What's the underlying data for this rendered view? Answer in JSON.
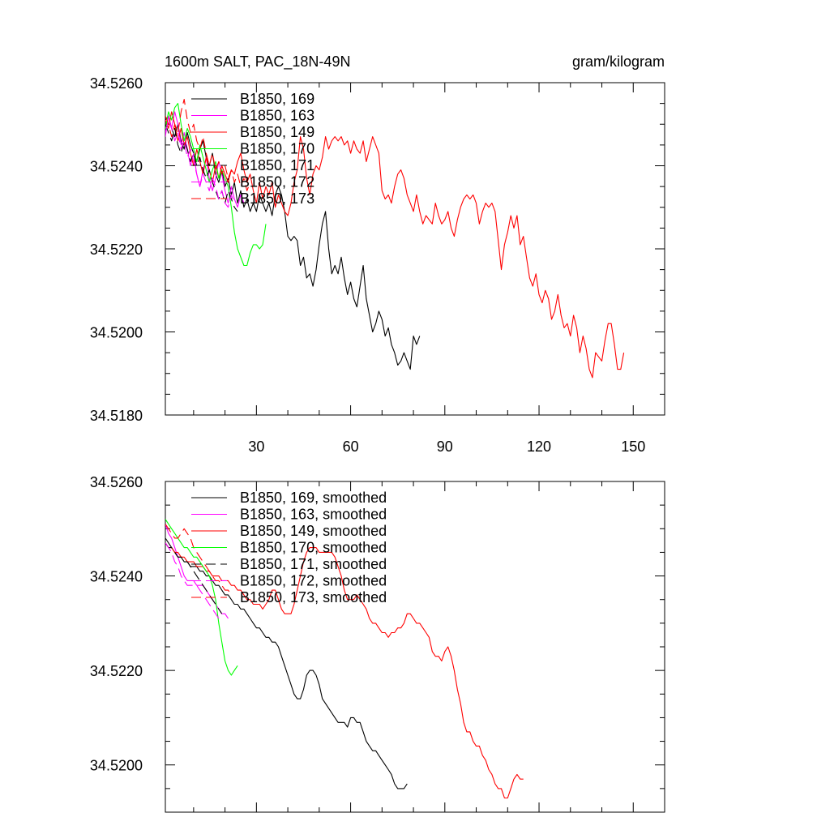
{
  "chart_data": [
    {
      "type": "line",
      "title_left": "1600m SALT, PAC_18N-49N",
      "title_right": "gram/kilogram",
      "xlabel": "",
      "ylabel": "",
      "xlim": [
        1,
        160
      ],
      "ylim": [
        34.518,
        34.526
      ],
      "x_ticks": [
        30,
        60,
        90,
        120,
        150
      ],
      "x_tick_labels": [
        "30",
        "60",
        "90",
        "120",
        "150"
      ],
      "y_ticks": [
        34.518,
        34.52,
        34.522,
        34.524,
        34.526
      ],
      "y_tick_labels": [
        "34.5180",
        "34.5200",
        "34.5220",
        "34.5240",
        "34.5260"
      ],
      "legend_position": "top-left",
      "series": [
        {
          "name": "B1850, 169",
          "color": "#000000",
          "dash": "solid",
          "x_start": 1,
          "values": [
            34.5251,
            34.5252,
            34.5249,
            34.5247,
            34.525,
            34.5246,
            34.5244,
            34.5248,
            34.5245,
            34.5243,
            34.5241,
            34.5244,
            34.5246,
            34.5242,
            34.524,
            34.5243,
            34.5238,
            34.5236,
            34.5239,
            34.5235,
            34.5237,
            34.5233,
            34.5236,
            34.5231,
            34.5234,
            34.523,
            34.5232,
            34.5229,
            34.5231,
            34.5229,
            34.5233,
            34.5231,
            34.5229,
            34.5231,
            34.5228,
            34.5233,
            34.5235,
            34.5233,
            34.5229,
            34.5223,
            34.5222,
            34.5223,
            34.5222,
            34.5216,
            34.5218,
            34.5213,
            34.5214,
            34.5211,
            34.5215,
            34.5221,
            34.5226,
            34.5229,
            34.522,
            34.5214,
            34.5216,
            34.5214,
            34.5218,
            34.5213,
            34.5209,
            34.5212,
            34.5208,
            34.5206,
            34.5211,
            34.5216,
            34.5208,
            34.5204,
            34.52,
            34.5202,
            34.5205,
            34.5203,
            34.5199,
            34.5201,
            34.5197,
            34.5195,
            34.5192,
            34.5193,
            34.5195,
            34.5193,
            34.5191,
            34.5199,
            34.5197,
            34.5199
          ]
        },
        {
          "name": "B1850, 163",
          "color": "#ff00ff",
          "dash": "solid",
          "x_start": 1,
          "values": [
            34.5247,
            34.5252,
            34.5249,
            34.5253,
            34.525,
            34.5245,
            34.5248,
            34.5244,
            34.524,
            34.5243,
            34.5238,
            34.5235,
            34.5239,
            34.5242,
            34.5237,
            34.5234,
            34.5237,
            34.5241,
            34.5238,
            34.5234,
            34.5231,
            34.5235,
            34.5232,
            34.523,
            34.5233,
            34.5231
          ]
        },
        {
          "name": "B1850, 149",
          "color": "#ff0000",
          "dash": "solid",
          "x_start": 1,
          "values": [
            34.5251,
            34.5249,
            34.5253,
            34.525,
            34.5246,
            34.5249,
            34.5245,
            34.5247,
            34.5243,
            34.524,
            34.5244,
            34.5241,
            34.5238,
            34.5242,
            34.5239,
            34.5236,
            34.524,
            34.5237,
            34.524,
            34.5238,
            34.5236,
            34.5239,
            34.5238,
            34.5241,
            34.5243,
            34.5239,
            34.5236,
            34.5238,
            34.5234,
            34.5231,
            34.5236,
            34.5232,
            34.5235,
            34.5233,
            34.5236,
            34.523,
            34.5233,
            34.5231,
            34.5229,
            34.5228,
            34.5231,
            34.5236,
            34.5239,
            34.5247,
            34.5244,
            34.5237,
            34.5233,
            34.5238,
            34.524,
            34.5239,
            34.5242,
            34.5247,
            34.5244,
            34.5246,
            34.5247,
            34.5246,
            34.5247,
            34.5245,
            34.5246,
            34.5243,
            34.5246,
            34.5244,
            34.5243,
            34.5246,
            34.5241,
            34.5244,
            34.5247,
            34.5245,
            34.5243,
            34.5234,
            34.5232,
            34.5233,
            34.5231,
            34.5235,
            34.5238,
            34.5239,
            34.5237,
            34.5233,
            34.5231,
            34.5229,
            34.5233,
            34.5229,
            34.5226,
            34.5228,
            34.5227,
            34.5226,
            34.5231,
            34.5228,
            34.5226,
            34.5227,
            34.5229,
            34.5225,
            34.5223,
            34.5227,
            34.523,
            34.5232,
            34.5233,
            34.5232,
            34.5233,
            34.5231,
            34.5226,
            34.5229,
            34.5231,
            34.523,
            34.5231,
            34.5229,
            34.5222,
            34.5215,
            34.5221,
            34.5224,
            34.5228,
            34.5225,
            34.5228,
            34.5221,
            34.5223,
            34.5218,
            34.5213,
            34.5211,
            34.5214,
            34.5209,
            34.5207,
            34.521,
            34.5208,
            34.5203,
            34.5205,
            34.5209,
            34.5204,
            34.5201,
            34.5202,
            34.5199,
            34.5204,
            34.5201,
            34.5195,
            34.5199,
            34.5196,
            34.5191,
            34.5189,
            34.5195,
            34.5194,
            34.5193,
            34.5198,
            34.5202,
            34.5202,
            34.5197,
            34.5191,
            34.5191,
            34.5195
          ]
        },
        {
          "name": "B1850, 170",
          "color": "#00ff00",
          "dash": "solid",
          "x_start": 1,
          "values": [
            34.5249,
            34.5253,
            34.5251,
            34.5254,
            34.5255,
            34.525,
            34.5246,
            34.5249,
            34.5247,
            34.5244,
            34.5241,
            34.5245,
            34.5242,
            34.5239,
            34.5236,
            34.5239,
            34.5241,
            34.5237,
            34.5239,
            34.5237,
            34.5235,
            34.523,
            34.5224,
            34.522,
            34.5218,
            34.5216,
            34.5216,
            34.5219,
            34.5221,
            34.5221,
            34.522,
            34.5221,
            34.5226
          ]
        },
        {
          "name": "B1850, 171",
          "color": "#000000",
          "dash": "dashed",
          "x_start": 1,
          "values": [
            34.525,
            34.5248,
            34.5246,
            34.5249,
            34.5245,
            34.5243,
            34.5246,
            34.5244,
            34.5241,
            34.5243,
            34.524,
            34.5242,
            34.5239,
            34.5237,
            34.5239,
            34.5236,
            34.5234,
            34.5232,
            34.5234,
            34.5231,
            34.5234,
            34.5232,
            34.523,
            34.5229
          ]
        },
        {
          "name": "B1850, 172",
          "color": "#ff00ff",
          "dash": "dashed",
          "x_start": 1,
          "values": [
            34.5248,
            34.5251,
            34.5249,
            34.5246,
            34.5248,
            34.5244,
            34.5246,
            34.5242,
            34.5244,
            34.5241,
            34.5238,
            34.5235,
            34.5238,
            34.5236,
            34.5234,
            34.5237,
            34.5235,
            34.5232,
            34.5234,
            34.5231,
            34.523,
            34.5233,
            34.5231
          ]
        },
        {
          "name": "B1850, 173",
          "color": "#ff0000",
          "dash": "dashed",
          "x_start": 1,
          "values": [
            34.5252,
            34.525,
            34.5247,
            34.525,
            34.5248,
            34.5253,
            34.5256,
            34.5251,
            34.5248,
            34.525,
            34.5246,
            34.5244,
            34.5247,
            34.5243,
            34.524,
            34.5243,
            34.5239,
            34.5241,
            34.5238,
            34.524,
            34.5237,
            34.5239,
            34.5236,
            34.5238,
            34.5235,
            34.5237,
            34.5234,
            34.5236
          ]
        }
      ]
    },
    {
      "type": "line",
      "xlabel": "",
      "ylabel": "",
      "xlim": [
        1,
        160
      ],
      "ylim": [
        34.519,
        34.526
      ],
      "x_ticks": [
        30,
        60,
        90,
        120,
        150
      ],
      "y_ticks": [
        34.52,
        34.522,
        34.524,
        34.526
      ],
      "y_tick_labels": [
        "34.5200",
        "34.5220",
        "34.5240",
        "34.5260"
      ],
      "legend_position": "top-left",
      "series": [
        {
          "name": "B1850, 169, smoothed",
          "color": "#000000",
          "dash": "solid",
          "x_start": 1,
          "values": [
            34.5248,
            34.5247,
            34.5246,
            34.5245,
            34.5244,
            34.5244,
            34.5243,
            34.5243,
            34.5242,
            34.5242,
            34.5242,
            34.5241,
            34.5241,
            34.524,
            34.524,
            34.5239,
            34.5238,
            34.5238,
            34.5237,
            34.5236,
            34.5236,
            34.5235,
            34.5234,
            34.5234,
            34.5233,
            34.5233,
            34.5232,
            34.5231,
            34.523,
            34.5229,
            34.5229,
            34.5228,
            34.5227,
            34.5227,
            34.5226,
            34.5226,
            34.5225,
            34.5223,
            34.5221,
            34.5219,
            34.5217,
            34.5215,
            34.5214,
            34.5214,
            34.5216,
            34.5219,
            34.522,
            34.522,
            34.5219,
            34.5217,
            34.5214,
            34.5213,
            34.5212,
            34.5211,
            34.521,
            34.5209,
            34.5209,
            34.5209,
            34.5208,
            34.521,
            34.521,
            34.5209,
            34.5209,
            34.5207,
            34.5205,
            34.5204,
            34.5203,
            34.5203,
            34.5202,
            34.5201,
            34.52,
            34.5199,
            34.5198,
            34.5196,
            34.5195,
            34.5195,
            34.5195,
            34.5196
          ]
        },
        {
          "name": "B1850, 163, smoothed",
          "color": "#ff00ff",
          "dash": "solid",
          "x_start": 1,
          "values": [
            34.5251,
            34.5249,
            34.5248,
            34.5246,
            34.5244,
            34.5242,
            34.524,
            34.5239,
            34.5239,
            34.5239,
            34.5238,
            34.5238,
            34.5238,
            34.5237,
            34.5236,
            34.5235,
            34.5234,
            34.5233,
            34.5232,
            34.5232,
            34.5231
          ]
        },
        {
          "name": "B1850, 149, smoothed",
          "color": "#ff0000",
          "dash": "solid",
          "x_start": 1,
          "values": [
            34.5247,
            34.5246,
            34.5246,
            34.5245,
            34.5245,
            34.5244,
            34.5244,
            34.5243,
            34.5243,
            34.5243,
            34.5242,
            34.5242,
            34.5242,
            34.5241,
            34.5241,
            34.524,
            34.524,
            34.524,
            34.5239,
            34.5239,
            34.5239,
            34.5238,
            34.5238,
            34.5237,
            34.5237,
            34.5236,
            34.5235,
            34.5235,
            34.5234,
            34.5234,
            34.5234,
            34.5233,
            34.5234,
            34.5235,
            34.5237,
            34.5237,
            34.5235,
            34.5233,
            34.5232,
            34.5232,
            34.5232,
            34.5234,
            34.5237,
            34.524,
            34.5243,
            34.5245,
            34.5246,
            34.5246,
            34.5246,
            34.5245,
            34.5245,
            34.5245,
            34.5245,
            34.5245,
            34.5244,
            34.5242,
            34.524,
            34.5237,
            34.5235,
            34.5235,
            34.5235,
            34.5236,
            34.5235,
            34.5234,
            34.5233,
            34.5231,
            34.523,
            34.523,
            34.5229,
            34.5228,
            34.5228,
            34.5227,
            34.5228,
            34.5228,
            34.5229,
            34.5229,
            34.523,
            34.5232,
            34.5232,
            34.5231,
            34.523,
            34.523,
            34.5229,
            34.5228,
            34.5227,
            34.5224,
            34.5223,
            34.5223,
            34.5222,
            34.5224,
            34.5225,
            34.5223,
            34.522,
            34.5216,
            34.5213,
            34.5209,
            34.5207,
            34.5207,
            34.5205,
            34.5204,
            34.5204,
            34.5202,
            34.5201,
            34.5199,
            34.5198,
            34.5196,
            34.5195,
            34.5195,
            34.5193,
            34.5193,
            34.5195,
            34.5197,
            34.5198,
            34.5197,
            34.5197
          ]
        },
        {
          "name": "B1850, 170, smoothed",
          "color": "#00ff00",
          "dash": "solid",
          "x_start": 1,
          "values": [
            34.5252,
            34.5251,
            34.525,
            34.5249,
            34.5248,
            34.5247,
            34.5246,
            34.5246,
            34.5245,
            34.5244,
            34.5244,
            34.5243,
            34.5242,
            34.5241,
            34.524,
            34.5238,
            34.5235,
            34.523,
            34.5226,
            34.5222,
            34.522,
            34.5219,
            34.522,
            34.5221
          ]
        },
        {
          "name": "B1850, 171, smoothed",
          "color": "#000000",
          "dash": "dashed",
          "x_start": 1,
          "values": [
            34.5247,
            34.5246,
            34.5246,
            34.5245,
            34.5244,
            34.5244,
            34.5243,
            34.5243,
            34.5242,
            34.5241,
            34.524,
            34.5239,
            34.5238,
            34.5237,
            34.5236,
            34.5235,
            34.5234,
            34.5233,
            34.5232
          ]
        },
        {
          "name": "B1850, 172, smoothed",
          "color": "#ff00ff",
          "dash": "dashed",
          "x_start": 1,
          "values": [
            34.5247,
            34.5246,
            34.5245,
            34.5243,
            34.5242,
            34.524,
            34.5239,
            34.5238,
            34.5238,
            34.5238,
            34.5238,
            34.5237,
            34.5236,
            34.5235,
            34.5234,
            34.5233,
            34.5232,
            34.5231,
            34.5231
          ]
        },
        {
          "name": "B1850, 173, smoothed",
          "color": "#ff0000",
          "dash": "dashed",
          "x_start": 1,
          "values": [
            34.5251,
            34.525,
            34.5249,
            34.5248,
            34.5248,
            34.5249,
            34.525,
            34.5249,
            34.5248,
            34.5246,
            34.5245,
            34.5244,
            34.5243,
            34.5242,
            34.5241,
            34.524,
            34.5239,
            34.5239,
            34.5238,
            34.5237,
            34.5237,
            34.5236
          ]
        }
      ]
    }
  ]
}
